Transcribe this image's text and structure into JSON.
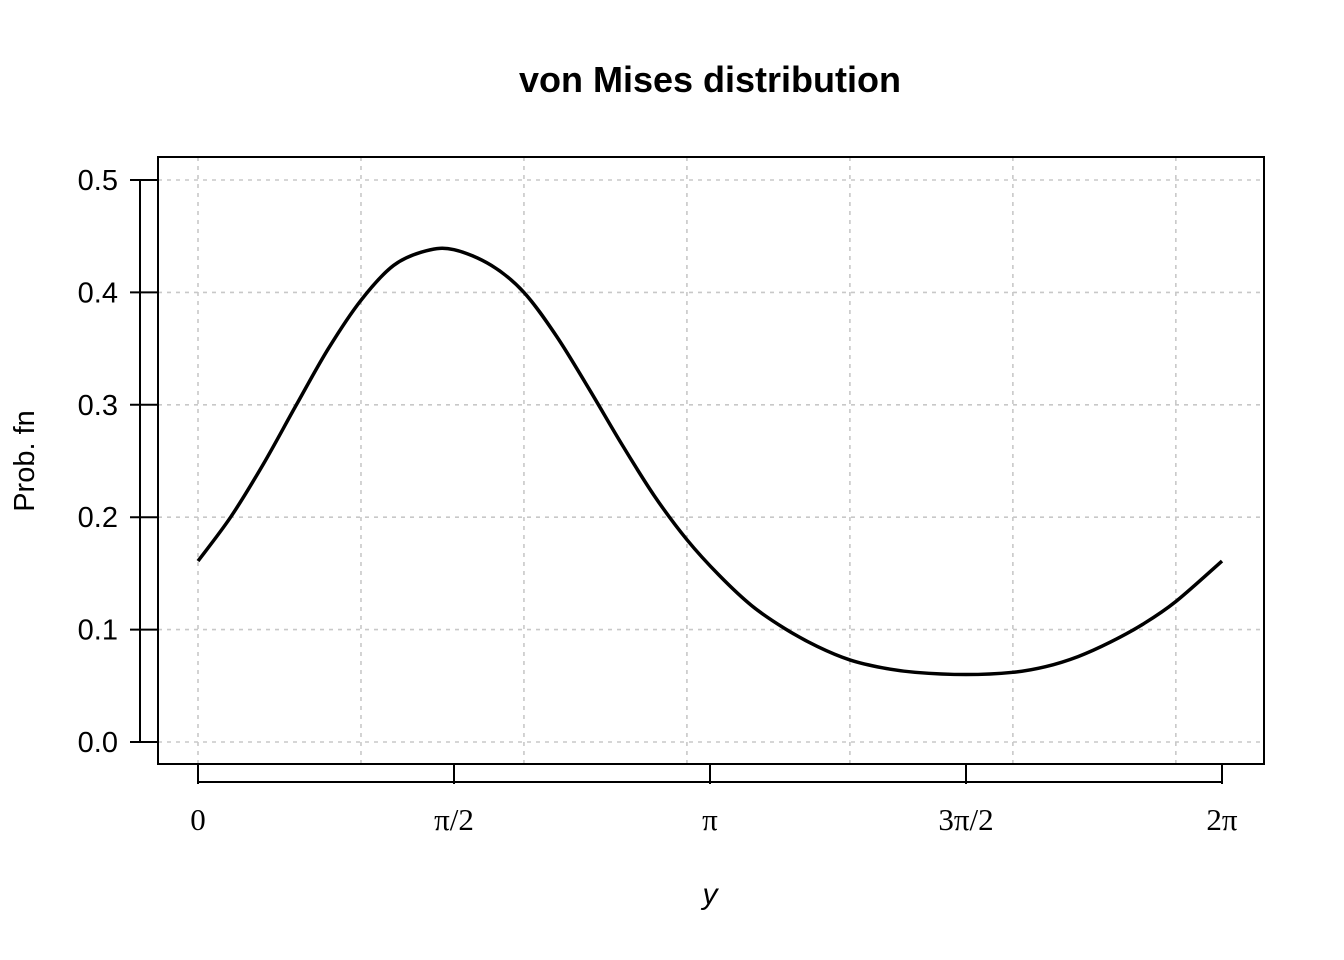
{
  "chart_data": {
    "type": "line",
    "title": "von Mises distribution",
    "xlabel": "y",
    "ylabel": "Prob. fn",
    "xlim": [
      0,
      6.283185307
    ],
    "ylim": [
      0,
      0.5
    ],
    "x_ticks": [
      {
        "value": 0,
        "label": "0"
      },
      {
        "value": 1.570796327,
        "label": "π/2"
      },
      {
        "value": 3.141592654,
        "label": "π"
      },
      {
        "value": 4.71238898,
        "label": "3π/2"
      },
      {
        "value": 6.283185307,
        "label": "2π"
      }
    ],
    "x_grid": [
      0,
      1,
      2,
      3,
      4,
      5,
      6
    ],
    "y_ticks": [
      {
        "value": 0.0,
        "label": "0.0"
      },
      {
        "value": 0.1,
        "label": "0.1"
      },
      {
        "value": 0.2,
        "label": "0.2"
      },
      {
        "value": 0.3,
        "label": "0.3"
      },
      {
        "value": 0.4,
        "label": "0.4"
      },
      {
        "value": 0.5,
        "label": "0.5"
      }
    ],
    "grid": true,
    "series": [
      {
        "x": [
          0,
          0.2,
          0.4,
          0.6,
          0.8,
          1.0,
          1.2,
          1.4,
          1.5708,
          1.8,
          2.0,
          2.2,
          2.4,
          2.6,
          2.8,
          3.0,
          3.2,
          3.4,
          3.6,
          3.8,
          4.0,
          4.2,
          4.4,
          4.7124,
          5.0,
          5.2,
          5.4,
          5.6,
          5.8,
          6.0,
          6.2832
        ],
        "values": [
          0.161,
          0.2,
          0.247,
          0.299,
          0.35,
          0.393,
          0.424,
          0.437,
          0.438,
          0.424,
          0.4,
          0.361,
          0.314,
          0.265,
          0.219,
          0.18,
          0.148,
          0.121,
          0.101,
          0.085,
          0.073,
          0.066,
          0.062,
          0.06,
          0.062,
          0.067,
          0.076,
          0.089,
          0.105,
          0.125,
          0.161
        ]
      }
    ]
  }
}
